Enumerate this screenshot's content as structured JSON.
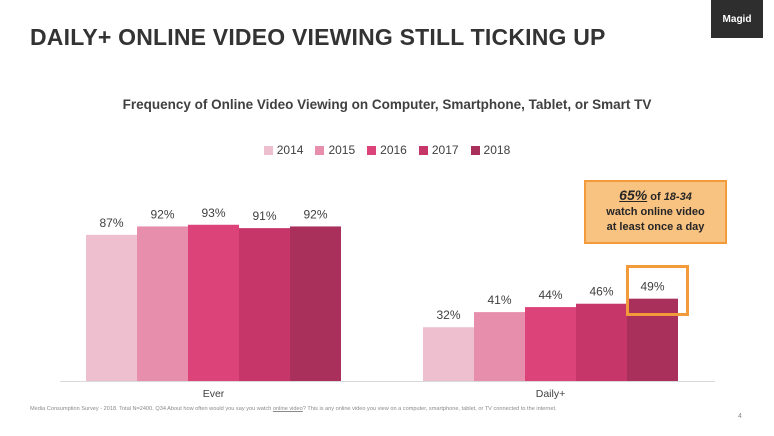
{
  "slide": {
    "title": "DAILY+ ONLINE VIDEO VIEWING STILL TICKING UP",
    "logo": "Magid",
    "page_number": "4"
  },
  "callout": {
    "percent": "65%",
    "of": " of ",
    "age": "18-34",
    "line2": "watch online video",
    "line3": "at least once a day"
  },
  "footnote": {
    "part1": "Media Consumption Survey - 2018. Total N=2400. Q34 About how often would you say you watch ",
    "underlined": "online video",
    "part2": "? This is any online video you view on a computer, smartphone, tablet, or TV connected to the internet."
  },
  "colors": [
    "#eebfcf",
    "#e68eac",
    "#dc4379",
    "#c73669",
    "#a8305b"
  ],
  "chart_data": {
    "type": "bar",
    "title": "Frequency of Online Video Viewing on Computer, Smartphone, Tablet, or Smart TV",
    "categories": [
      "Ever",
      "Daily+"
    ],
    "series": [
      {
        "name": "2014",
        "values": [
          87,
          32
        ],
        "labels": [
          "87%",
          "32%"
        ]
      },
      {
        "name": "2015",
        "values": [
          92,
          41
        ],
        "labels": [
          "92%",
          "41%"
        ]
      },
      {
        "name": "2016",
        "values": [
          93,
          44
        ],
        "labels": [
          "93%",
          "44%"
        ]
      },
      {
        "name": "2017",
        "values": [
          91,
          46
        ],
        "labels": [
          "91%",
          "46%"
        ]
      },
      {
        "name": "2018",
        "values": [
          92,
          49
        ],
        "labels": [
          "92%",
          "49%"
        ]
      }
    ],
    "ylim": [
      0,
      100
    ],
    "grid": false,
    "legend_position": "top"
  }
}
